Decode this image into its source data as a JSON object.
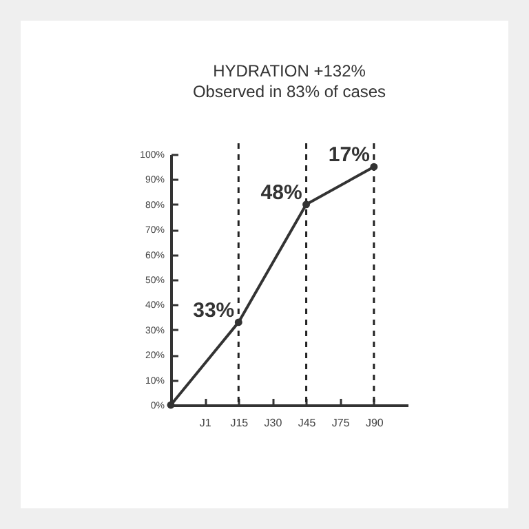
{
  "chart_data": {
    "type": "line",
    "title": "HYDRATION +132%",
    "subtitle": "Observed in 83% of cases",
    "categories": [
      null,
      "J1",
      "J15",
      "J30",
      "J45",
      "J75",
      "J90"
    ],
    "series": [
      {
        "color": "#333333",
        "values": [
          0,
          null,
          33,
          null,
          80,
          null,
          95
        ]
      }
    ],
    "annotations": [
      {
        "text": "33%",
        "x": "J15",
        "y": 33
      },
      {
        "text": "48%",
        "x": "J45",
        "y": 80
      },
      {
        "text": "17%",
        "x": "J90",
        "y": 95
      }
    ],
    "ylim": [
      0,
      100
    ],
    "yticks": [
      {
        "value": 0,
        "label": "0%"
      },
      {
        "value": 10,
        "label": "10%"
      },
      {
        "value": 20,
        "label": "20%"
      },
      {
        "value": 30,
        "label": "30%"
      },
      {
        "value": 40,
        "label": "40%"
      },
      {
        "value": 50,
        "label": "50%"
      },
      {
        "value": 60,
        "label": "60%"
      },
      {
        "value": 70,
        "label": "70%"
      },
      {
        "value": 80,
        "label": "80%"
      },
      {
        "value": 90,
        "label": "90%"
      },
      {
        "value": 100,
        "label": "100%"
      }
    ],
    "ref_lines": [
      {
        "axis": "x",
        "value": "J15",
        "line_style": "dashed"
      },
      {
        "axis": "x",
        "value": "J45",
        "line_style": "dashed"
      },
      {
        "axis": "x",
        "value": "J90",
        "line_style": "dashed"
      }
    ],
    "grid": false,
    "marker": "circle",
    "line_style": "solid"
  }
}
